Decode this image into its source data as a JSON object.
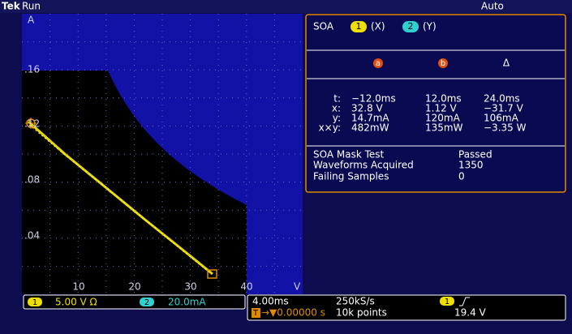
{
  "header": {
    "brand": "Tek",
    "status": "Run",
    "trigger_mode": "Auto"
  },
  "plot": {
    "y_unit": "A",
    "x_unit": "V",
    "x_ticks": [
      "10",
      "20",
      "30",
      "40"
    ],
    "y_ticks": [
      ".16",
      ".12",
      ".08",
      ".04"
    ]
  },
  "readout": {
    "title": "SOA",
    "ch1": "1",
    "ch1_axis": "(X)",
    "ch2": "2",
    "ch2_axis": "(Y)",
    "columns": [
      "a",
      "b",
      "Δ"
    ],
    "rows": [
      [
        "t:",
        "−12.0ms",
        "12.0ms",
        "24.0ms"
      ],
      [
        "x:",
        "32.8 V",
        "1.12 V",
        "−31.7 V"
      ],
      [
        "y:",
        "14.7mA",
        "120mA",
        "106mA"
      ],
      [
        "x×y:",
        "482mW",
        "135mW",
        "−3.35 W"
      ]
    ],
    "mask": [
      [
        "SOA Mask Test",
        "Passed"
      ],
      [
        "Waveforms Acquired",
        "1350"
      ],
      [
        "Failing Samples",
        "0"
      ]
    ]
  },
  "footer": {
    "ch1": "1",
    "ch1_scale": "5.00 V Ω",
    "ch2": "2",
    "ch2_scale": "20.0mA",
    "timebase": "4.00ms",
    "sample_rate": "250kS/s",
    "trigger_source": "1",
    "trigger_level": "19.4 V",
    "trigger_badge": "T",
    "trigger_position": "→▼0.00000 s",
    "record_length": "10k points"
  }
}
